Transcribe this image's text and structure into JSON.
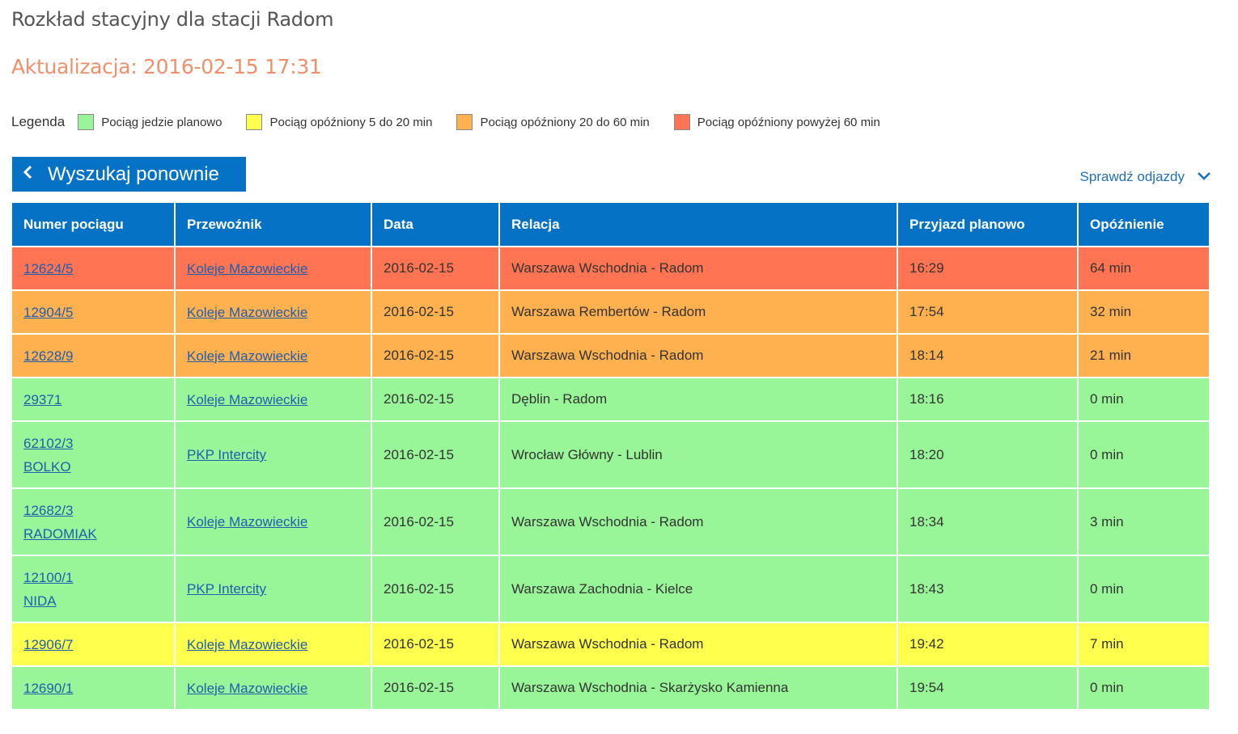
{
  "page": {
    "title": "Rozkład stacyjny dla stacji Radom",
    "update": "Aktualizacja: 2016-02-15 17:31"
  },
  "legend": {
    "label": "Legenda",
    "items": [
      {
        "label": "Pociąg jedzie planowo",
        "color": "#98f598"
      },
      {
        "label": "Pociąg opóźniony 5 do 20 min",
        "color": "#ffff4d"
      },
      {
        "label": "Pociąg opóźniony 20 do 60 min",
        "color": "#ffb04f"
      },
      {
        "label": "Pociąg opóźniony powyżej 60 min",
        "color": "#ff7452"
      }
    ]
  },
  "actions": {
    "search_again": "Wyszukaj ponownie",
    "check_departures": "Sprawdź odjazdy"
  },
  "table": {
    "headers": [
      "Numer pociągu",
      "Przewoźnik",
      "Data",
      "Relacja",
      "Przyjazd planowo",
      "Opóźnienie"
    ],
    "rows": [
      {
        "train": "12624/5",
        "train_name": "",
        "carrier": "Koleje Mazowieckie",
        "date": "2016-02-15",
        "route": "Warszawa Wschodnia - Radom",
        "arrival": "16:29",
        "delay": "64 min",
        "color": "#ff7452"
      },
      {
        "train": "12904/5",
        "train_name": "",
        "carrier": "Koleje Mazowieckie",
        "date": "2016-02-15",
        "route": "Warszawa Rembertów - Radom",
        "arrival": "17:54",
        "delay": "32 min",
        "color": "#ffb04f"
      },
      {
        "train": "12628/9",
        "train_name": "",
        "carrier": "Koleje Mazowieckie",
        "date": "2016-02-15",
        "route": "Warszawa Wschodnia - Radom",
        "arrival": "18:14",
        "delay": "21 min",
        "color": "#ffb04f"
      },
      {
        "train": "29371",
        "train_name": "",
        "carrier": "Koleje Mazowieckie",
        "date": "2016-02-15",
        "route": "Dęblin - Radom",
        "arrival": "18:16",
        "delay": "0 min",
        "color": "#98f598"
      },
      {
        "train": "62102/3",
        "train_name": "BOLKO",
        "carrier": "PKP Intercity",
        "date": "2016-02-15",
        "route": "Wrocław Główny - Lublin",
        "arrival": "18:20",
        "delay": "0 min",
        "color": "#98f598"
      },
      {
        "train": "12682/3",
        "train_name": "RADOMIAK",
        "carrier": "Koleje Mazowieckie",
        "date": "2016-02-15",
        "route": "Warszawa Wschodnia - Radom",
        "arrival": "18:34",
        "delay": "3 min",
        "color": "#98f598"
      },
      {
        "train": "12100/1",
        "train_name": "NIDA",
        "carrier": "PKP Intercity",
        "date": "2016-02-15",
        "route": "Warszawa Zachodnia - Kielce",
        "arrival": "18:43",
        "delay": "0 min",
        "color": "#98f598"
      },
      {
        "train": "12906/7",
        "train_name": "",
        "carrier": "Koleje Mazowieckie",
        "date": "2016-02-15",
        "route": "Warszawa Wschodnia - Radom",
        "arrival": "19:42",
        "delay": "7 min",
        "color": "#ffff4d"
      },
      {
        "train": "12690/1",
        "train_name": "",
        "carrier": "Koleje Mazowieckie",
        "date": "2016-02-15",
        "route": "Warszawa Wschodnia - Skarżysko Kamienna",
        "arrival": "19:54",
        "delay": "0 min",
        "color": "#98f598"
      }
    ]
  }
}
